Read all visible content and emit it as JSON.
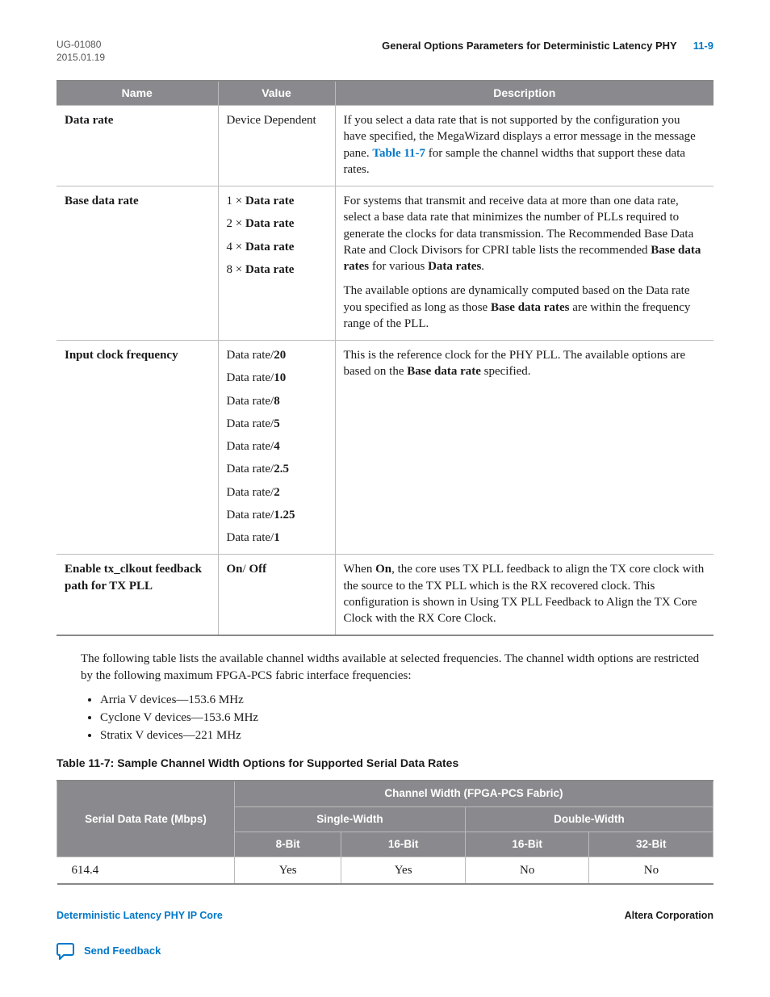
{
  "header": {
    "doc_id": "UG-01080",
    "date": "2015.01.19",
    "section_title": "General Options Parameters for Deterministic Latency PHY",
    "page_number": "11-9"
  },
  "table1": {
    "columns": [
      "Name",
      "Value",
      "Description"
    ],
    "rows": [
      {
        "name": "Data rate",
        "value": "Device Dependent",
        "desc_html": "If you select a data rate that is not supported by the configuration you have specified, the MegaWizard displays a error message in the message pane. <span class=\"link-inline\">Table 11-7</span> for sample the channel widths that support these data rates."
      },
      {
        "name": "Base data rate",
        "values_html": [
          "1 × <b>Data rate</b>",
          "2 × <b>Data rate</b>",
          "4 × <b>Data rate</b>",
          "8 × <b>Data rate</b>"
        ],
        "desc_html": "<p>For systems that transmit and receive data at more than one data rate, select a base data rate that minimizes the number of PLLs required to generate the clocks for data transmission. The Recommended Base Data Rate and Clock Divisors for CPRI table lists the recommended <b>Base data rates</b> for various <b>Data rates</b>.</p><p>The available options are dynamically computed based on the Data rate you specified as long as those <b>Base data rates</b> are within the frequency range of the PLL.</p>"
      },
      {
        "name": "Input clock frequency",
        "values_html": [
          "Data rate/<b>20</b>",
          "Data rate/<b>10</b>",
          "Data rate/<b>8</b>",
          "Data rate/<b>5</b>",
          "Data rate/<b>4</b>",
          "Data rate/<b>2.5</b>",
          "Data rate/<b>2</b>",
          "Data rate/<b>1.25</b>",
          "Data rate/<b>1</b>"
        ],
        "desc_html": "This is the reference clock for the PHY PLL. The available options are based on the <b>Base data rate</b> specified."
      },
      {
        "name": "Enable tx_clkout feedback path for TX PLL",
        "value_html": "<b>On</b>/ <b>Off</b>",
        "desc_html": "When <b>On</b>, the core uses TX PLL feedback to align the TX core clock with the source to the TX PLL which is the RX recovered clock. This configuration is shown in Using TX PLL Feedback to Align the TX Core Clock with the RX Core Clock."
      }
    ]
  },
  "body_paragraph": "The following table lists the available channel widths available at selected frequencies. The channel width options are restricted by the following maximum FPGA-PCS fabric interface frequencies:",
  "devices": [
    "Arria V devices—153.6 MHz",
    "Cyclone V devices—153.6 MHz",
    "Stratix V devices—221 MHz"
  ],
  "table2_caption": "Table 11-7: Sample Channel Width Options for Supported Serial Data Rates",
  "table2": {
    "row_header": "Serial Data Rate (Mbps)",
    "group_header": "Channel Width (FPGA-PCS Fabric)",
    "single_width": "Single-Width",
    "double_width": "Double-Width",
    "sub_cols": [
      "8-Bit",
      "16-Bit",
      "16-Bit",
      "32-Bit"
    ],
    "data_row": {
      "rate": "614.4",
      "cells": [
        "Yes",
        "Yes",
        "No",
        "No"
      ]
    }
  },
  "footer": {
    "left": "Deterministic Latency PHY IP Core",
    "right": "Altera Corporation",
    "feedback": "Send Feedback"
  },
  "colors": {
    "link": "#0077c8",
    "table_header_bg": "#8a8a8e"
  }
}
